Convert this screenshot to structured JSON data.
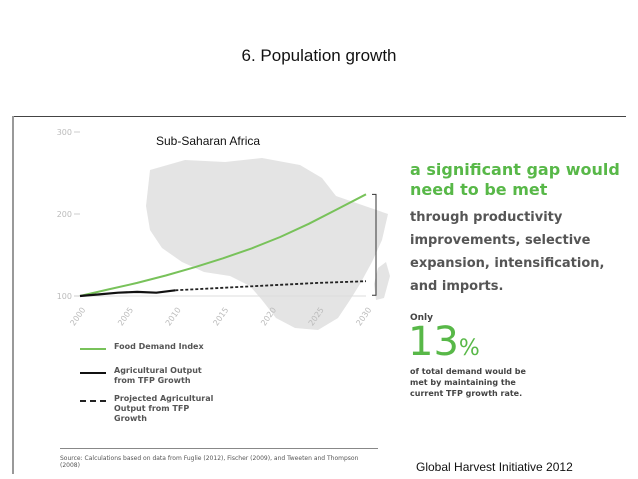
{
  "slide": {
    "title": "6. Population growth",
    "attribution": "Global Harvest Initiative 2012"
  },
  "panel": {
    "region_label": "Sub-Saharan Africa",
    "headline": "a significant gap would need to be met",
    "subhead": "through productivity improvements, selective expansion, intensification, and imports.",
    "only": "Only",
    "big_number": "13",
    "big_number_unit": "%",
    "demand_text": "of total demand would be met by maintaining the current TFP growth rate.",
    "source": "Source: Calculations based on data from Fuglie (2012), Fischer (2009), and Tweeten and Thompson (2008)"
  },
  "colors": {
    "food_demand": "#78c25a",
    "ag_output": "#111111",
    "projected": "#222222",
    "map": "#e4e4e4",
    "axis_text": "#bbbbbb"
  },
  "legend": [
    {
      "label": "Food Demand Index",
      "style": "solid-green"
    },
    {
      "label": "Agricultural Output from TFP Growth",
      "style": "solid-black"
    },
    {
      "label": "Projected Agricultural Output from TFP Growth",
      "style": "dashed-black"
    }
  ],
  "chart_data": {
    "type": "line",
    "ylim": [
      100,
      300
    ],
    "yticks": [
      100,
      200,
      300
    ],
    "xlim": [
      2000,
      2030
    ],
    "xticks": [
      "2000",
      "2005",
      "2010",
      "2015",
      "2020",
      "2025",
      "2030"
    ],
    "grid": false,
    "legend_position": "bottom-left",
    "series": [
      {
        "name": "Food Demand Index",
        "x": [
          2000,
          2003,
          2006,
          2009,
          2012,
          2015,
          2018,
          2021,
          2024,
          2027,
          2030
        ],
        "values": [
          100,
          108,
          116,
          125,
          135,
          146,
          158,
          172,
          188,
          206,
          224
        ]
      },
      {
        "name": "Agricultural Output from TFP Growth",
        "x": [
          2000,
          2002,
          2004,
          2006,
          2008,
          2010
        ],
        "values": [
          100,
          102,
          104,
          105,
          104,
          107
        ]
      },
      {
        "name": "Projected Agricultural Output from TFP Growth",
        "x": [
          2010,
          2015,
          2020,
          2025,
          2030
        ],
        "values": [
          107,
          110,
          113,
          116,
          118
        ]
      }
    ]
  }
}
